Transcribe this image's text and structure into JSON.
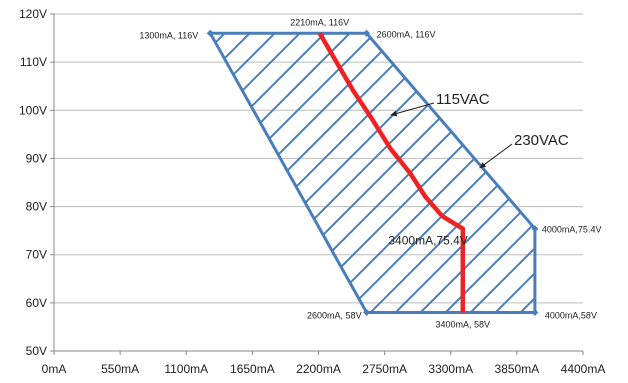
{
  "chart_data": {
    "type": "area",
    "xlim": [
      0,
      4400
    ],
    "ylim": [
      50,
      120
    ],
    "x_ticks": [
      0,
      550,
      1100,
      1650,
      2200,
      2750,
      3300,
      3850,
      4400
    ],
    "x_tick_labels": [
      "0mA",
      "550mA",
      "1100mA",
      "1650mA",
      "2200mA",
      "2750mA",
      "3300mA",
      "3850mA",
      "4400mA"
    ],
    "y_ticks": [
      50,
      60,
      70,
      80,
      90,
      100,
      110,
      120
    ],
    "y_tick_labels": [
      "50V",
      "60V",
      "70V",
      "80V",
      "90V",
      "100V",
      "110V",
      "120V"
    ],
    "grid": "horizontal",
    "series": [
      {
        "name": "230VAC",
        "style": "hatched-region",
        "color": "#4a7ebb",
        "points": [
          {
            "x": 1300,
            "y": 116
          },
          {
            "x": 2600,
            "y": 116
          },
          {
            "x": 4000,
            "y": 75.4
          },
          {
            "x": 4000,
            "y": 58
          },
          {
            "x": 2600,
            "y": 58
          }
        ]
      },
      {
        "name": "115VAC",
        "style": "line",
        "color": "#ee2222",
        "points": [
          {
            "x": 2210,
            "y": 116
          },
          {
            "x": 2350,
            "y": 110
          },
          {
            "x": 2490,
            "y": 104
          },
          {
            "x": 2650,
            "y": 98
          },
          {
            "x": 2800,
            "y": 92
          },
          {
            "x": 2960,
            "y": 87
          },
          {
            "x": 3090,
            "y": 82
          },
          {
            "x": 3230,
            "y": 78
          },
          {
            "x": 3400,
            "y": 75.4
          },
          {
            "x": 3400,
            "y": 58
          }
        ]
      }
    ],
    "point_labels": [
      {
        "text": "1300mA, 116V",
        "x": 1300,
        "y": 116
      },
      {
        "text": "2210mA, 116V",
        "x": 2210,
        "y": 116
      },
      {
        "text": "2600mA, 116V",
        "x": 2600,
        "y": 116
      },
      {
        "text": "4000mA,75.4V",
        "x": 4000,
        "y": 75.4
      },
      {
        "text": "2600mA, 58V",
        "x": 2600,
        "y": 58
      },
      {
        "text": "3400mA, 58V",
        "x": 3400,
        "y": 58
      },
      {
        "text": "4000mA,58V",
        "x": 4000,
        "y": 58
      }
    ],
    "mid_label": {
      "text": "3400mA,75.4V",
      "x": 3400,
      "y": 75.4
    },
    "callouts": [
      {
        "text": "115VAC",
        "target_x": 2800,
        "target_y": 99
      },
      {
        "text": "230VAC",
        "target_x": 3540,
        "target_y": 88
      }
    ]
  }
}
